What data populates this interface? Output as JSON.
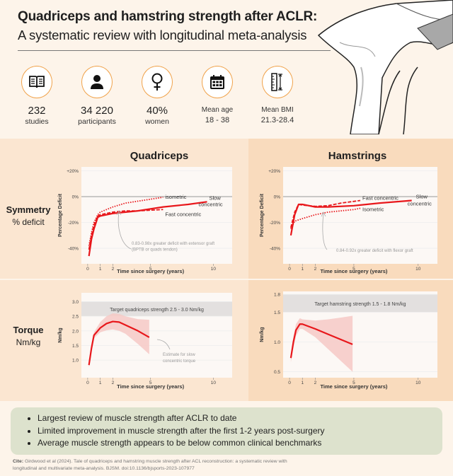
{
  "header": {
    "title_line1": "Quadriceps and hamstring strength after ACLR:",
    "title_line2": "A systematic review with longitudinal meta-analysis"
  },
  "stats": [
    {
      "icon": "book-icon",
      "value": "232",
      "label": "studies"
    },
    {
      "icon": "person-icon",
      "value": "34 220",
      "label": "participants"
    },
    {
      "icon": "female-symbol-icon",
      "value": "40%",
      "label": "women"
    },
    {
      "icon": "calendar-icon",
      "label": "Mean age",
      "value": "18 - 38"
    },
    {
      "icon": "ruler-icon",
      "label": "Mean BMI",
      "value": "21.3-28.4"
    }
  ],
  "colors": {
    "background": "#fdf4ea",
    "panel_left": "#fbe6d1",
    "panel_right": "#f9dbbd",
    "accent": "#e8171b",
    "ribbon": "#f6c9c6",
    "target_band": "#e3e0df",
    "summary_bg": "#dde2cd",
    "icon_ring": "#f0a24a"
  },
  "rows": {
    "symmetry_title": "Symmetry",
    "symmetry_sub": "% deficit",
    "torque_title": "Torque",
    "torque_sub": "Nm/kg"
  },
  "columns": {
    "left": "Quadriceps",
    "right": "Hamstrings"
  },
  "chart_data": [
    {
      "id": "quad-symmetry",
      "type": "line",
      "xlabel": "Time since surgery (years)",
      "ylabel": "Percentage Deficit",
      "xticks": [
        0,
        1,
        2,
        5,
        10
      ],
      "yticks": [
        20,
        0,
        -20,
        -40
      ],
      "ytick_labels": [
        "+20%",
        "0%",
        "-20%",
        "-40%"
      ],
      "xlim": [
        -0.5,
        11.5
      ],
      "ylim": [
        -52,
        23
      ],
      "grid": true,
      "series": [
        {
          "name": "isometric",
          "style": "dotted",
          "x": [
            0.1,
            0.3,
            0.5,
            0.8,
            1,
            2,
            3,
            4,
            5,
            6
          ],
          "y": [
            -38,
            -28,
            -20,
            -14,
            -12,
            -8,
            -5,
            -3.5,
            -2,
            -0.5
          ]
        },
        {
          "name": "Fast concentric",
          "style": "dashed",
          "x": [
            0.1,
            0.3,
            0.5,
            0.8,
            1,
            2,
            3,
            4,
            5,
            6
          ],
          "y": [
            -41,
            -30,
            -22,
            -15,
            -14,
            -12,
            -11,
            -11,
            -10.5,
            -10
          ]
        },
        {
          "name": "Slow concentric",
          "style": "solid",
          "x": [
            0.1,
            0.3,
            0.5,
            0.8,
            1,
            2,
            4,
            6,
            8,
            9.5
          ],
          "y": [
            -46,
            -33,
            -25,
            -16,
            -15,
            -13,
            -11,
            -8,
            -6,
            -4
          ]
        }
      ],
      "annotation": [
        "0.83-0.98x greater deficit with extensor graft",
        "(BPTB or quads tendon)"
      ]
    },
    {
      "id": "ham-symmetry",
      "type": "line",
      "xlabel": "Time since surgery (years)",
      "ylabel": "Percentage Deficit",
      "xticks": [
        0,
        1,
        2,
        5,
        10
      ],
      "yticks": [
        20,
        0,
        -20,
        -40
      ],
      "ytick_labels": [
        "+20%",
        "0%",
        "-20%",
        "-40%"
      ],
      "xlim": [
        -0.5,
        11.5
      ],
      "ylim": [
        -52,
        23
      ],
      "grid": true,
      "series": [
        {
          "name": "Fast concentric",
          "style": "dashed",
          "x": [
            0.1,
            0.4,
            0.7,
            1,
            2,
            3,
            4,
            5.5
          ],
          "y": [
            -24,
            -12,
            -6,
            -6.5,
            -7.5,
            -7,
            -5,
            -3
          ]
        },
        {
          "name": "Isometric",
          "style": "dotted",
          "x": [
            0.1,
            0.4,
            1,
            2,
            3,
            5,
            5.5
          ],
          "y": [
            -25,
            -19,
            -17,
            -14,
            -12,
            -10,
            -9
          ]
        },
        {
          "name": "Slow concentric",
          "style": "solid",
          "x": [
            0.1,
            0.4,
            0.7,
            1,
            2,
            3,
            5,
            7,
            9.5
          ],
          "y": [
            -30,
            -14,
            -6,
            -6,
            -8,
            -8,
            -7,
            -5,
            -3
          ]
        }
      ],
      "annotation": [
        "0.84-0.92x greater deficit with flexor graft"
      ]
    },
    {
      "id": "quad-torque",
      "type": "area",
      "xlabel": "Time since surgery (years)",
      "ylabel": "Nm/kg",
      "xticks": [
        0,
        1,
        2,
        5,
        10
      ],
      "yticks": [
        1.0,
        1.5,
        2.0,
        2.5,
        3.0
      ],
      "ytick_labels": [
        "1.0",
        "1.5",
        "2.0",
        "2.5",
        "3.0"
      ],
      "xlim": [
        -0.5,
        11.5
      ],
      "ylim": [
        0.4,
        3.3
      ],
      "grid": true,
      "target_band": [
        2.5,
        3.0
      ],
      "target_label": "Target quadriceps strength 2.5 - 3.0 Nm/kg",
      "series": [
        {
          "style": "solid",
          "x": [
            0.1,
            0.3,
            0.5,
            1,
            1.5,
            2,
            2.5,
            3,
            4,
            4.9
          ],
          "y": [
            0.83,
            1.4,
            1.85,
            2.1,
            2.25,
            2.32,
            2.3,
            2.2,
            2.0,
            1.78
          ],
          "upper": [
            0.9,
            1.55,
            1.95,
            2.3,
            2.5,
            2.6,
            2.58,
            2.5,
            2.4,
            2.38
          ],
          "lower": [
            0.75,
            1.25,
            1.75,
            1.95,
            2.02,
            2.05,
            2.0,
            1.9,
            1.55,
            1.2
          ]
        }
      ],
      "annotation": [
        "Estimate for slow",
        "concentric torque"
      ]
    },
    {
      "id": "ham-torque",
      "type": "area",
      "xlabel": "Time since surgery (years)",
      "ylabel": "Nm/kg",
      "xticks": [
        0,
        1,
        2,
        5,
        10
      ],
      "yticks": [
        0.5,
        1.0,
        1.5,
        1.8
      ],
      "ytick_labels": [
        "0.5",
        "1.0",
        "1.5",
        "1.8"
      ],
      "xlim": [
        -0.5,
        11.5
      ],
      "ylim": [
        0.4,
        1.85
      ],
      "grid": true,
      "target_band": [
        1.5,
        1.8
      ],
      "target_label": "Target hamstring strength 1.5 - 1.8 Nm/kg",
      "series": [
        {
          "style": "solid",
          "x": [
            0.1,
            0.3,
            0.5,
            0.8,
            1,
            2,
            3,
            4,
            4.9
          ],
          "y": [
            0.73,
            1.0,
            1.2,
            1.3,
            1.3,
            1.22,
            1.13,
            1.04,
            0.96
          ],
          "upper": [
            0.8,
            1.1,
            1.3,
            1.4,
            1.38,
            1.36,
            1.38,
            1.41,
            1.44
          ],
          "lower": [
            0.66,
            0.9,
            1.1,
            1.22,
            1.22,
            1.08,
            0.88,
            0.68,
            0.5
          ]
        }
      ]
    }
  ],
  "summary": [
    "Largest review of muscle strength after ACLR to date",
    "Limited improvement in muscle strength after the first 1-2 years post-surgery",
    "Average muscle strength appears to be below common clinical benchmarks"
  ],
  "citation": {
    "label": "Cite:",
    "text": "Girdwood et al (2024). Tale of quadriceps and hamstring muscle strength after ACL reconstruction: a systematic review with longitudinal and multivariate meta-analysis. BJSM. doi:10.1136/bjsports-2023-107977"
  }
}
